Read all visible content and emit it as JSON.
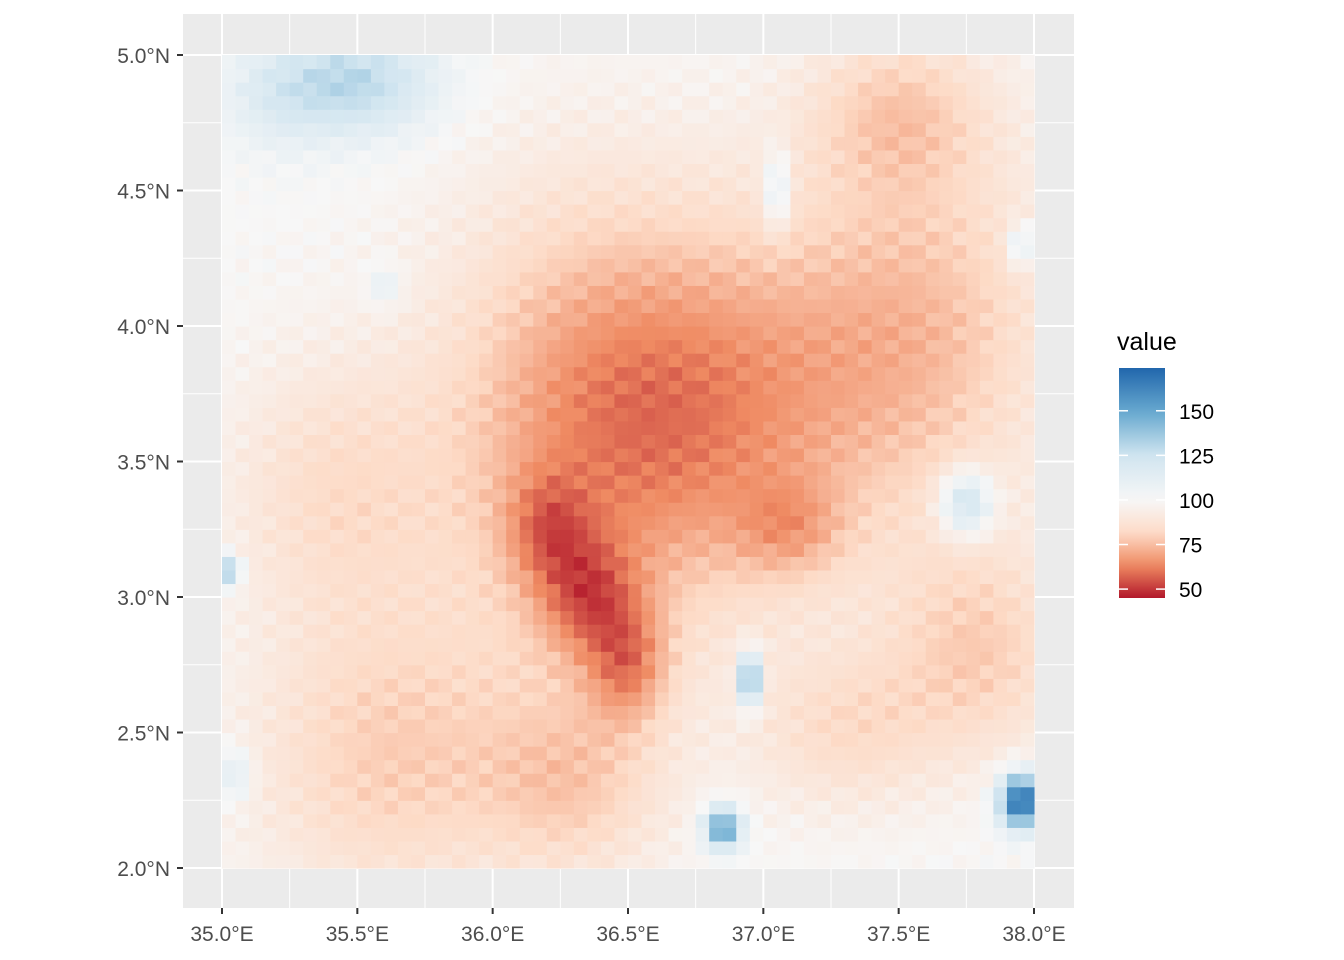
{
  "chart_data": {
    "type": "heatmap",
    "title": "",
    "xlabel": "",
    "ylabel": "",
    "x_range": [
      35.0,
      38.0
    ],
    "y_range": [
      2.0,
      5.0
    ],
    "x_ticks": [
      {
        "value": 35.0,
        "label": "35.0°E"
      },
      {
        "value": 35.5,
        "label": "35.5°E"
      },
      {
        "value": 36.0,
        "label": "36.0°E"
      },
      {
        "value": 36.5,
        "label": "36.5°E"
      },
      {
        "value": 37.0,
        "label": "37.0°E"
      },
      {
        "value": 37.5,
        "label": "37.5°E"
      },
      {
        "value": 38.0,
        "label": "38.0°E"
      }
    ],
    "y_ticks": [
      {
        "value": 2.0,
        "label": "2.0°N"
      },
      {
        "value": 2.5,
        "label": "2.5°N"
      },
      {
        "value": 3.0,
        "label": "3.0°N"
      },
      {
        "value": 3.5,
        "label": "3.5°N"
      },
      {
        "value": 4.0,
        "label": "4.0°N"
      },
      {
        "value": 4.5,
        "label": "4.5°N"
      },
      {
        "value": 5.0,
        "label": "5.0°N"
      }
    ],
    "grid": true,
    "legend": {
      "title": "value",
      "position": "right",
      "range": [
        45,
        174
      ],
      "breaks": [
        {
          "value": 150,
          "label": "150"
        },
        {
          "value": 125,
          "label": "125"
        },
        {
          "value": 100,
          "label": "100"
        },
        {
          "value": 75,
          "label": "75"
        },
        {
          "value": 50,
          "label": "50"
        }
      ],
      "colors_low_to_high": [
        "#b2182b",
        "#ef8a62",
        "#fddbc7",
        "#f7f7f7",
        "#d1e5f0",
        "#67a9cf",
        "#2166ac"
      ]
    },
    "grid_cols": 60,
    "grid_rows": 60,
    "field": {
      "base_value": 100,
      "features": [
        {
          "lon": 36.3,
          "lat": 3.6,
          "value": -25,
          "spread_lon": 0.55,
          "spread_lat": 0.9
        },
        {
          "lon": 36.85,
          "lat": 3.7,
          "value": -28,
          "spread_lon": 0.6,
          "spread_lat": 0.7
        },
        {
          "lon": 37.6,
          "lat": 4.0,
          "value": -22,
          "spread_lon": 0.5,
          "spread_lat": 0.7
        },
        {
          "lon": 37.5,
          "lat": 4.8,
          "value": -18,
          "spread_lon": 0.35,
          "spread_lat": 0.3
        },
        {
          "lon": 37.8,
          "lat": 2.8,
          "value": -20,
          "spread_lon": 0.35,
          "spread_lat": 0.4
        },
        {
          "lon": 35.6,
          "lat": 2.4,
          "value": -20,
          "spread_lon": 0.5,
          "spread_lat": 0.55
        },
        {
          "lon": 35.4,
          "lat": 3.4,
          "value": -15,
          "spread_lon": 0.4,
          "spread_lat": 0.5
        },
        {
          "lon": 36.3,
          "lat": 2.3,
          "value": -18,
          "spread_lon": 0.35,
          "spread_lat": 0.35
        },
        {
          "lon": 37.3,
          "lat": 2.5,
          "value": -15,
          "spread_lon": 0.35,
          "spread_lat": 0.3
        },
        {
          "lon": 36.35,
          "lat": 3.0,
          "value": -25,
          "spread_lon": 0.18,
          "spread_lat": 0.22
        },
        {
          "lon": 36.5,
          "lat": 2.75,
          "value": -25,
          "spread_lon": 0.15,
          "spread_lat": 0.22
        },
        {
          "lon": 36.2,
          "lat": 3.25,
          "value": -18,
          "spread_lon": 0.15,
          "spread_lat": 0.2
        },
        {
          "lon": 37.1,
          "lat": 3.25,
          "value": -15,
          "spread_lon": 0.2,
          "spread_lat": 0.18
        },
        {
          "lon": 35.5,
          "lat": 4.9,
          "value": 30,
          "spread_lon": 0.3,
          "spread_lat": 0.2
        },
        {
          "lon": 35.2,
          "lat": 4.85,
          "value": 12,
          "spread_lon": 0.2,
          "spread_lat": 0.2
        },
        {
          "lon": 37.75,
          "lat": 3.35,
          "value": 35,
          "spread_lon": 0.1,
          "spread_lat": 0.12
        },
        {
          "lon": 36.95,
          "lat": 2.7,
          "value": 60,
          "spread_lon": 0.04,
          "spread_lat": 0.1
        },
        {
          "lon": 36.85,
          "lat": 2.15,
          "value": 55,
          "spread_lon": 0.07,
          "spread_lat": 0.08
        },
        {
          "lon": 37.95,
          "lat": 2.25,
          "value": 75,
          "spread_lon": 0.08,
          "spread_lat": 0.1
        },
        {
          "lon": 35.03,
          "lat": 3.1,
          "value": 40,
          "spread_lon": 0.04,
          "spread_lat": 0.06
        },
        {
          "lon": 35.05,
          "lat": 2.35,
          "value": 18,
          "spread_lon": 0.06,
          "spread_lat": 0.1
        },
        {
          "lon": 37.05,
          "lat": 4.5,
          "value": 22,
          "spread_lon": 0.05,
          "spread_lat": 0.15
        },
        {
          "lon": 37.95,
          "lat": 4.3,
          "value": 22,
          "spread_lon": 0.05,
          "spread_lat": 0.08
        },
        {
          "lon": 35.6,
          "lat": 4.15,
          "value": 15,
          "spread_lon": 0.06,
          "spread_lat": 0.07
        }
      ]
    }
  }
}
